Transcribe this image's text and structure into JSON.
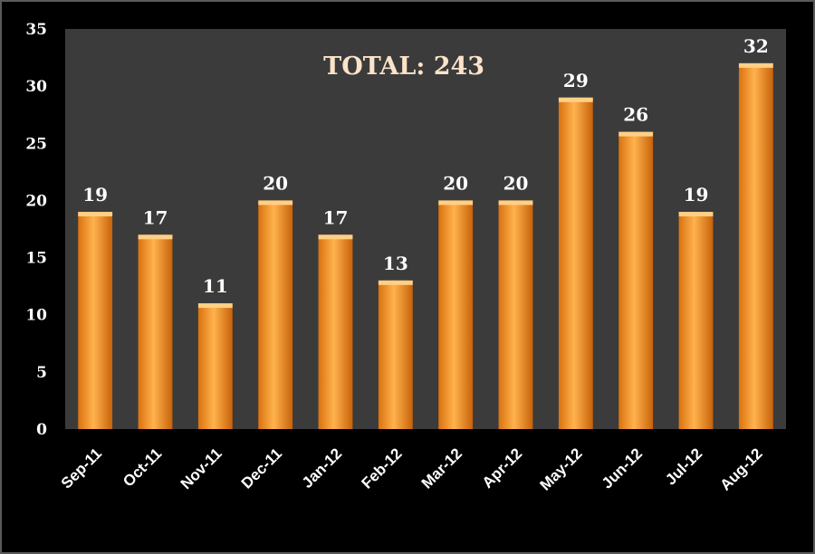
{
  "chart_data": {
    "type": "bar",
    "title": "TOTAL: 243",
    "categories": [
      "Sep-11",
      "Oct-11",
      "Nov-11",
      "Dec-11",
      "Jan-12",
      "Feb-12",
      "Mar-12",
      "Apr-12",
      "May-12",
      "Jun-12",
      "Jul-12",
      "Aug-12"
    ],
    "values": [
      19,
      17,
      11,
      20,
      17,
      13,
      20,
      20,
      29,
      26,
      19,
      32
    ],
    "xlabel": "",
    "ylabel": "",
    "ylim": [
      0,
      35
    ],
    "yticks": [
      "0",
      "5",
      "10",
      "15",
      "20",
      "25",
      "30",
      "35"
    ],
    "grid": false,
    "legend": "none",
    "colors": {
      "bar": "#f7941d",
      "bar_light": "#ffcf86",
      "bar_dark": "#c8620a",
      "plot_bg": "#3b3b3b",
      "page_bg": "#000000",
      "text": "#ffffff",
      "title": "#fbe3c9"
    }
  }
}
